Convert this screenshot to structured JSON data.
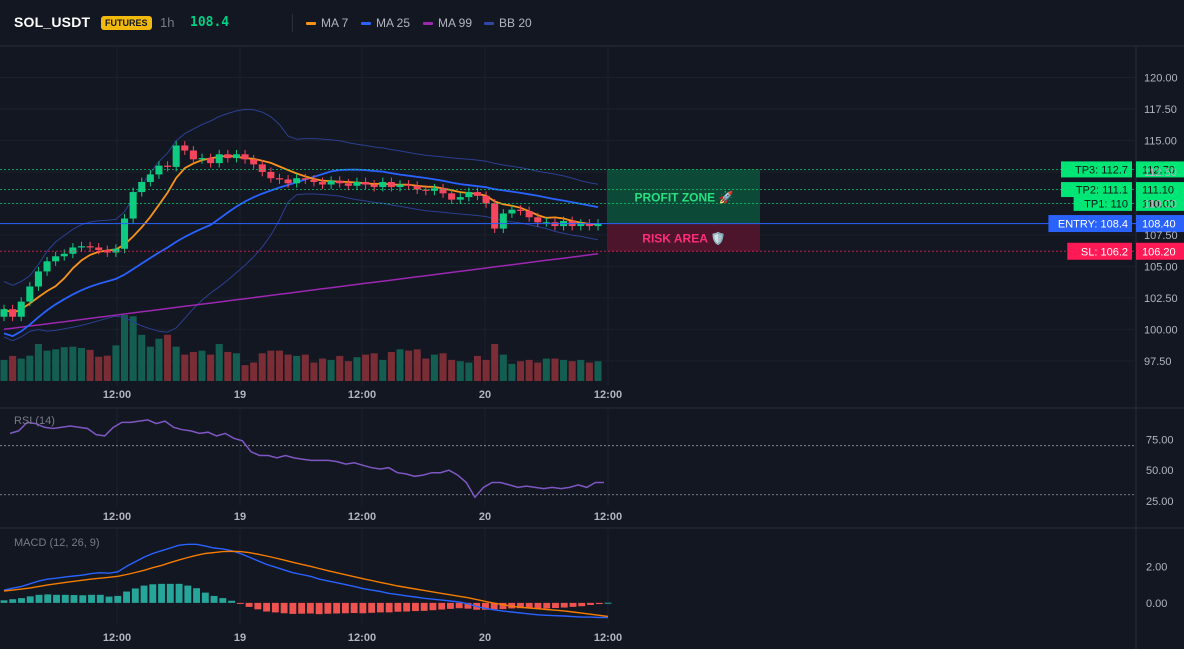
{
  "header": {
    "symbol": "SOL_USDT",
    "badge": "FUTURES",
    "timeframe": "1h",
    "last_price": "108.4",
    "legend": [
      {
        "label": "MA 7",
        "color": "#f7931a"
      },
      {
        "label": "MA 25",
        "color": "#2962ff"
      },
      {
        "label": "MA 99",
        "color": "#9c27b0"
      },
      {
        "label": "BB 20",
        "color": "#3047a3"
      }
    ]
  },
  "chart_data": [
    {
      "type": "candlestick",
      "title": "",
      "x_tick_labels": [
        "12:00",
        "19",
        "12:00",
        "20",
        "12:00"
      ],
      "y_tick_labels": [
        "120.00",
        "117.50",
        "115.00",
        "112.50",
        "110.00",
        "107.50",
        "105.00",
        "102.50",
        "100.00",
        "97.50"
      ],
      "ylim": [
        95.5,
        122.5
      ],
      "closes": [
        101.6,
        101.0,
        102.2,
        103.4,
        104.6,
        105.4,
        105.8,
        106.0,
        106.5,
        106.6,
        106.5,
        106.3,
        106.1,
        106.4,
        108.8,
        110.9,
        111.7,
        112.3,
        113.0,
        112.9,
        114.6,
        114.2,
        113.5,
        113.6,
        113.2,
        113.9,
        113.6,
        113.9,
        113.5,
        113.1,
        112.5,
        112.0,
        111.9,
        111.6,
        112.0,
        111.9,
        111.7,
        111.5,
        111.8,
        111.6,
        111.4,
        111.7,
        111.5,
        111.3,
        111.7,
        111.3,
        111.5,
        111.4,
        111.1,
        111.0,
        111.2,
        110.8,
        110.3,
        110.5,
        110.9,
        110.6,
        110.0,
        108.0,
        109.2,
        109.5,
        109.4,
        108.9,
        108.5,
        108.5,
        108.2,
        108.6,
        108.2,
        108.4,
        108.2,
        108.4
      ],
      "volumes": [
        80,
        95,
        85,
        96,
        140,
        115,
        120,
        128,
        130,
        125,
        118,
        92,
        96,
        135,
        250,
        245,
        175,
        130,
        160,
        175,
        130,
        100,
        110,
        115,
        100,
        140,
        110,
        105,
        60,
        70,
        105,
        115,
        115,
        100,
        95,
        100,
        70,
        85,
        80,
        95,
        75,
        90,
        100,
        105,
        80,
        110,
        120,
        115,
        120,
        85,
        100,
        105,
        80,
        75,
        70,
        95,
        80,
        140,
        100,
        65,
        75,
        80,
        70,
        85,
        85,
        80,
        75,
        80,
        70,
        75
      ],
      "ma7_end": 108.3,
      "ma25_end": 109.9,
      "ma99_end": 106.0,
      "annotations": {
        "tp3": {
          "label": "TP3: 112.7",
          "axis": "112.70",
          "value": 112.7
        },
        "tp2": {
          "label": "TP2: 111.1",
          "axis": "111.10",
          "value": 111.1
        },
        "tp1": {
          "label": "TP1: 110",
          "axis": "110.00",
          "value": 110.0
        },
        "entry": {
          "label": "ENTRY: 108.4",
          "axis": "108.40",
          "value": 108.4
        },
        "sl": {
          "label": "SL: 106.2",
          "axis": "106.20",
          "value": 106.2
        },
        "profit_zone": "PROFIT ZONE 🚀",
        "risk_area": "RISK AREA 🛡️"
      }
    },
    {
      "type": "line",
      "title": "RSI (14)",
      "ylim": [
        20,
        95
      ],
      "y_tick_labels": [
        "75.00",
        "50.00",
        "25.00"
      ],
      "reference_lines": [
        70,
        30
      ],
      "x_tick_labels": [
        "12:00",
        "19",
        "12:00",
        "20",
        "12:00"
      ],
      "values": [
        80,
        82,
        89,
        88,
        85,
        84,
        85,
        86,
        85,
        84,
        79,
        78,
        85,
        89,
        89,
        90,
        91,
        88,
        90,
        85,
        83,
        82,
        80,
        81,
        78,
        80,
        76,
        74,
        65,
        62,
        62,
        60,
        62,
        60,
        59,
        58,
        58,
        58,
        57,
        55,
        56,
        54,
        52,
        51,
        52,
        48,
        47,
        45,
        46,
        48,
        48,
        50,
        46,
        40,
        28,
        36,
        40,
        40,
        38,
        36,
        37,
        36,
        35,
        36,
        35,
        36,
        38,
        36,
        40,
        40
      ]
    },
    {
      "type": "line",
      "title": "MACD (12, 26, 9)",
      "ylim": [
        -1.1,
        3.6
      ],
      "y_tick_labels": [
        "2.00",
        "0.00"
      ],
      "x_tick_labels": [
        "12:00",
        "19",
        "12:00",
        "20",
        "12:00"
      ],
      "macd": [
        0.7,
        0.8,
        0.9,
        1.05,
        1.2,
        1.3,
        1.35,
        1.42,
        1.47,
        1.52,
        1.6,
        1.65,
        1.62,
        1.7,
        2.0,
        2.25,
        2.5,
        2.7,
        2.85,
        3.0,
        3.15,
        3.2,
        3.2,
        3.1,
        3.0,
        2.95,
        2.85,
        2.7,
        2.5,
        2.3,
        2.1,
        1.95,
        1.8,
        1.65,
        1.55,
        1.45,
        1.3,
        1.2,
        1.1,
        1.0,
        0.9,
        0.78,
        0.7,
        0.62,
        0.52,
        0.45,
        0.38,
        0.32,
        0.25,
        0.2,
        0.15,
        0.1,
        0.05,
        -0.05,
        -0.2,
        -0.3,
        -0.38,
        -0.45,
        -0.5,
        -0.55,
        -0.6,
        -0.65,
        -0.68,
        -0.7,
        -0.72,
        -0.75,
        -0.78,
        -0.78,
        -0.8,
        -0.8
      ],
      "signal": [
        0.65,
        0.7,
        0.75,
        0.82,
        0.9,
        0.98,
        1.05,
        1.12,
        1.18,
        1.24,
        1.3,
        1.35,
        1.4,
        1.45,
        1.55,
        1.66,
        1.78,
        1.92,
        2.05,
        2.2,
        2.35,
        2.48,
        2.6,
        2.7,
        2.75,
        2.8,
        2.82,
        2.8,
        2.75,
        2.66,
        2.56,
        2.45,
        2.34,
        2.22,
        2.11,
        2.0,
        1.88,
        1.76,
        1.65,
        1.54,
        1.43,
        1.32,
        1.22,
        1.12,
        1.02,
        0.92,
        0.84,
        0.76,
        0.68,
        0.6,
        0.52,
        0.44,
        0.36,
        0.28,
        0.18,
        0.08,
        -0.02,
        -0.1,
        -0.18,
        -0.24,
        -0.28,
        -0.32,
        -0.36,
        -0.4,
        -0.44,
        -0.5,
        -0.56,
        -0.62,
        -0.68,
        -0.74
      ]
    }
  ],
  "colors": {
    "up": "#0ecb81",
    "down": "#f6465d",
    "vol_up": "#135e51",
    "vol_down": "#7a2d35",
    "tp": "#00e676",
    "entry": "#2962ff",
    "sl": "#ff1a56",
    "rsi": "#7e57c2",
    "macd": "#2962ff",
    "signal": "#f57c00",
    "hist_up": "#26a69a",
    "hist_down": "#ef5350"
  }
}
